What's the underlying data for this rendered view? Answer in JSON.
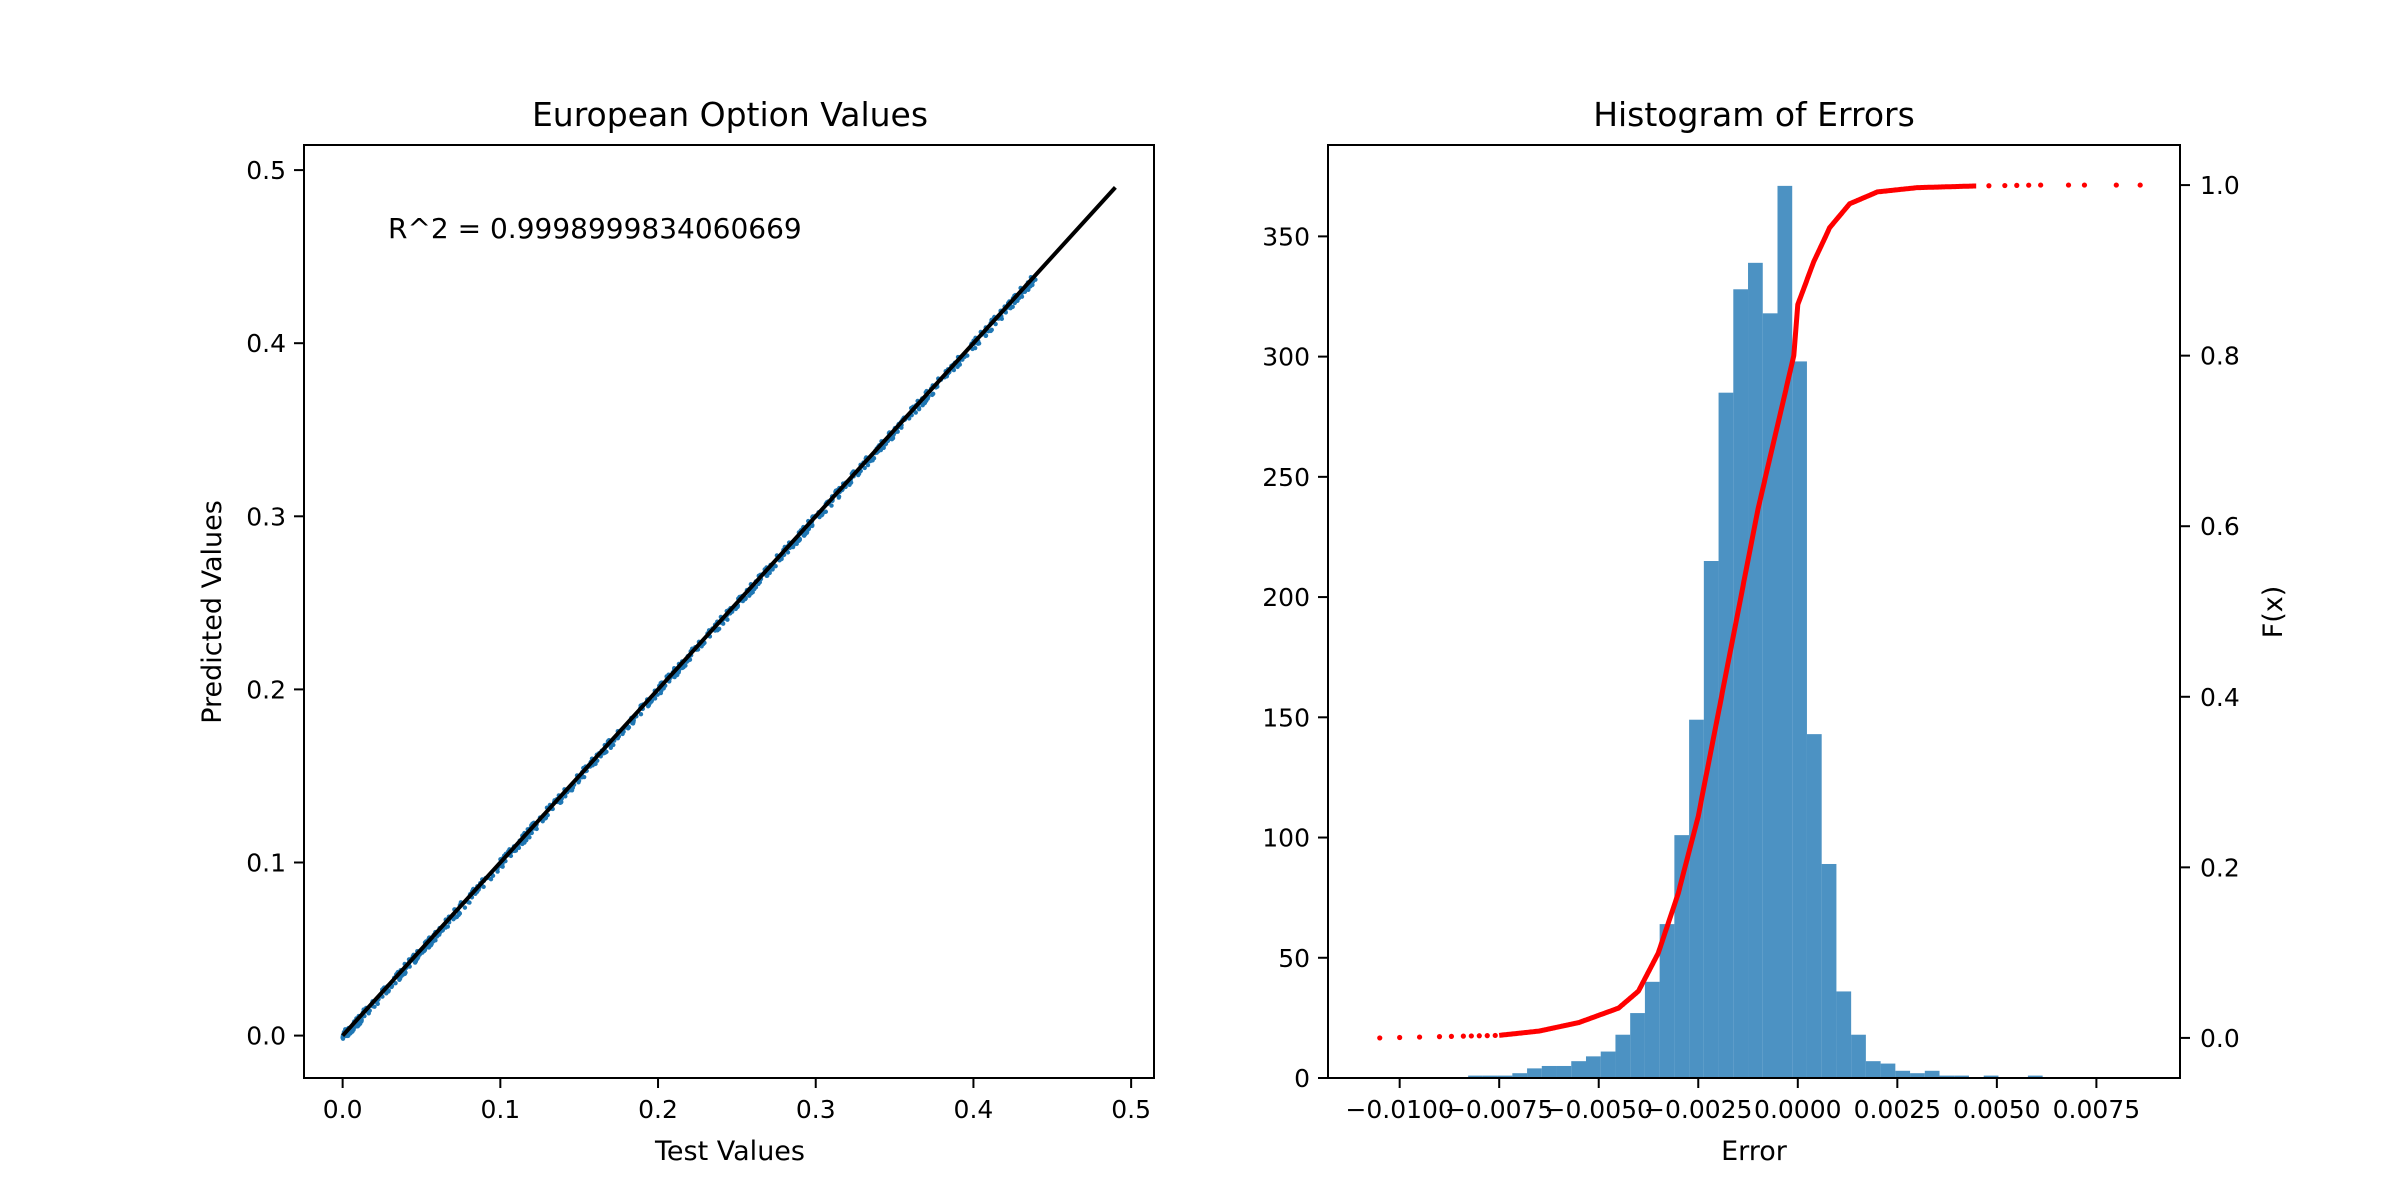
{
  "chart_data": [
    {
      "type": "scatter",
      "title": "European Option Values",
      "xlabel": "Test Values",
      "ylabel": "Predicted Values",
      "xlim": [
        -0.0245,
        0.5145
      ],
      "ylim": [
        -0.0245,
        0.5145
      ],
      "xticks": [
        0.0,
        0.1,
        0.2,
        0.3,
        0.4,
        0.5
      ],
      "xtick_labels": [
        "0.0",
        "0.1",
        "0.2",
        "0.3",
        "0.4",
        "0.5"
      ],
      "yticks": [
        0.0,
        0.1,
        0.2,
        0.3,
        0.4,
        0.5
      ],
      "ytick_labels": [
        "0.0",
        "0.1",
        "0.2",
        "0.3",
        "0.4",
        "0.5"
      ],
      "annotation": "R^2 = 0.9998999834060669",
      "fit_line": {
        "x": [
          0.0,
          0.49
        ],
        "y": [
          0.0,
          0.49
        ],
        "color": "#000000"
      },
      "scatter_color": "#1f77b4",
      "scatter_x_range": [
        0.0,
        0.44
      ],
      "grid": false
    },
    {
      "type": "bar",
      "title": "Histogram of Errors",
      "xlabel": "Error",
      "ylabel": "",
      "y2label": "F(x)",
      "xlim": [
        -0.0118,
        0.0096
      ],
      "ylim": [
        0,
        388
      ],
      "y2lim": [
        -0.047,
        1.047
      ],
      "xticks": [
        -0.01,
        -0.0075,
        -0.005,
        -0.0025,
        0.0,
        0.0025,
        0.005,
        0.0075
      ],
      "xtick_labels": [
        "−0.0100",
        "−0.0075",
        "−0.0050",
        "−0.0025",
        "0.0000",
        "0.0025",
        "0.0050",
        "0.0075"
      ],
      "yticks": [
        0,
        50,
        100,
        150,
        200,
        250,
        300,
        350
      ],
      "ytick_labels": [
        "0",
        "50",
        "100",
        "150",
        "200",
        "250",
        "300",
        "350"
      ],
      "y2ticks": [
        0.0,
        0.2,
        0.4,
        0.6,
        0.8,
        1.0
      ],
      "y2tick_labels": [
        "0.0",
        "0.2",
        "0.4",
        "0.6",
        "0.8",
        "1.0"
      ],
      "bar_color": "#1f77b4",
      "cdf_color": "#ff0000",
      "bin_start": -0.0105,
      "bin_width": 0.00037,
      "counts": [
        0,
        0,
        0,
        0,
        0,
        0,
        1,
        1,
        1,
        2,
        4,
        5,
        5,
        7,
        9,
        11,
        18,
        27,
        40,
        64,
        101,
        149,
        215,
        285,
        328,
        339,
        318,
        371,
        298,
        143,
        89,
        36,
        18,
        7,
        6,
        3,
        2,
        3,
        1,
        1,
        0,
        1,
        0,
        0,
        1,
        0,
        0,
        0,
        0,
        0,
        0,
        0
      ],
      "cdf_points": [
        {
          "x": -0.0105,
          "y": 0.0
        },
        {
          "x": -0.0095,
          "y": 0.001
        },
        {
          "x": -0.0085,
          "y": 0.002
        },
        {
          "x": -0.0075,
          "y": 0.003
        },
        {
          "x": -0.0065,
          "y": 0.008
        },
        {
          "x": -0.0055,
          "y": 0.018
        },
        {
          "x": -0.0045,
          "y": 0.035
        },
        {
          "x": -0.004,
          "y": 0.055
        },
        {
          "x": -0.0035,
          "y": 0.1
        },
        {
          "x": -0.003,
          "y": 0.17
        },
        {
          "x": -0.0025,
          "y": 0.26
        },
        {
          "x": -0.002,
          "y": 0.38
        },
        {
          "x": -0.0015,
          "y": 0.5
        },
        {
          "x": -0.001,
          "y": 0.62
        },
        {
          "x": -0.0005,
          "y": 0.72
        },
        {
          "x": -0.0001,
          "y": 0.8
        },
        {
          "x": 0.0,
          "y": 0.86
        },
        {
          "x": 0.0004,
          "y": 0.91
        },
        {
          "x": 0.0008,
          "y": 0.95
        },
        {
          "x": 0.0013,
          "y": 0.978
        },
        {
          "x": 0.002,
          "y": 0.992
        },
        {
          "x": 0.003,
          "y": 0.997
        },
        {
          "x": 0.0045,
          "y": 0.999
        },
        {
          "x": 0.006,
          "y": 1.0
        },
        {
          "x": 0.0085,
          "y": 1.0
        }
      ],
      "grid": false
    }
  ]
}
